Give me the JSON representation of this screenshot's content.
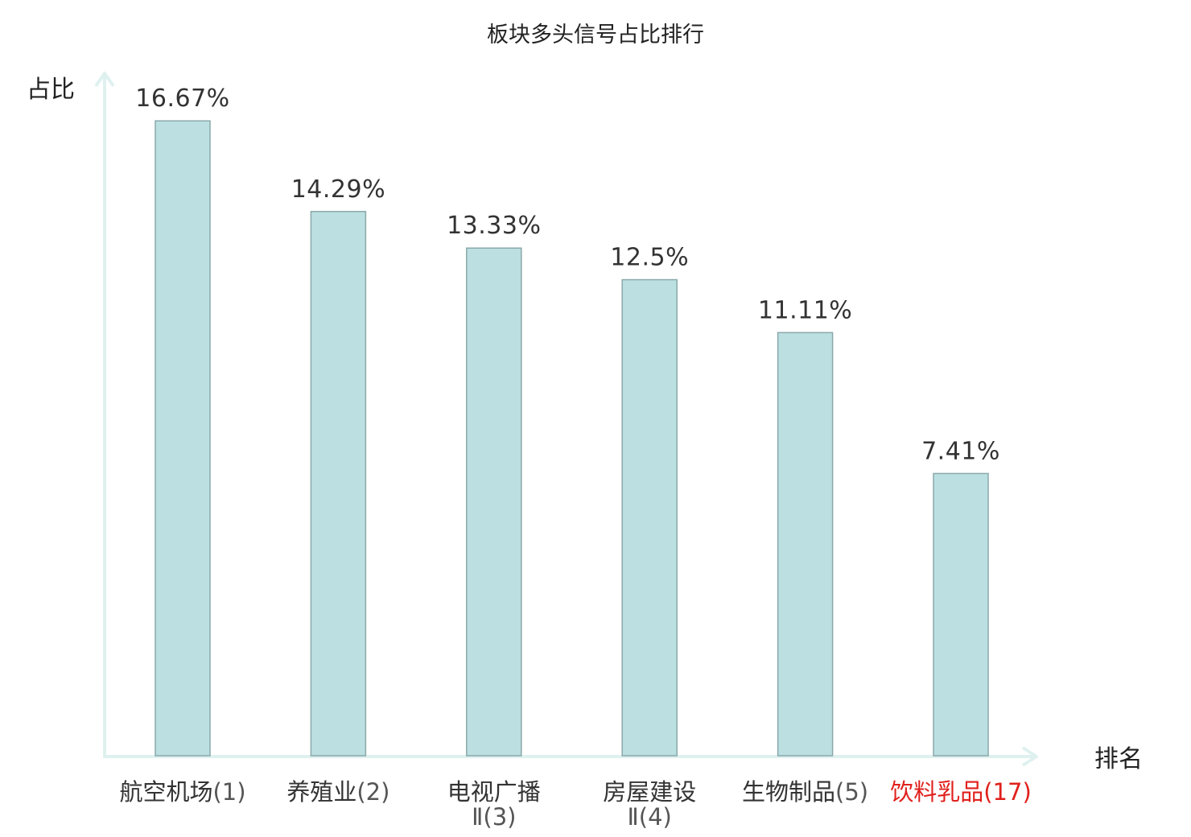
{
  "chart_data": {
    "type": "bar",
    "title": "板块多头信号占比排行",
    "ylabel": "占比",
    "xlabel": "排名",
    "ylim": [
      0,
      17.9
    ],
    "grid": false,
    "legend": "none",
    "categories": [
      {
        "name": "航空机场",
        "rank": "(1)",
        "highlight": false
      },
      {
        "name": "养殖业",
        "rank": "(2)",
        "highlight": false
      },
      {
        "name": "电视广播",
        "name2": "Ⅱ",
        "rank": "(3)",
        "highlight": false
      },
      {
        "name": "房屋建设",
        "name2": "Ⅱ",
        "rank": "(4)",
        "highlight": false
      },
      {
        "name": "生物制品",
        "rank": "(5)",
        "highlight": false
      },
      {
        "name": "饮料乳品",
        "rank": "(17)",
        "highlight": true
      }
    ],
    "values": [
      16.67,
      14.29,
      13.33,
      12.5,
      11.11,
      7.41
    ],
    "value_labels": [
      "16.67%",
      "14.29%",
      "13.33%",
      "12.5%",
      "11.11%",
      "7.41%"
    ],
    "colors": {
      "bar_fill": "#bce0e2",
      "bar_stroke": "#8aa8aa",
      "axis": "#dff1ef",
      "text": "#333333",
      "highlight": "#e0201c",
      "rank_text": "#555555"
    }
  }
}
